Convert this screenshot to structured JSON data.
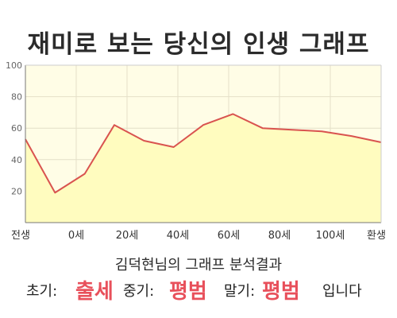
{
  "title": "재미로 보는 당신의 인생 그래프",
  "chart_data": {
    "type": "area",
    "y_ticks": [
      "100",
      "80",
      "60",
      "40",
      "20"
    ],
    "x_tick_labels": [
      "전생",
      "0세",
      "20세",
      "40세",
      "60세",
      "80세",
      "100세",
      "환생"
    ],
    "ylim": [
      0,
      100
    ],
    "grid": true,
    "series": [
      {
        "values": [
          53,
          19,
          31,
          62,
          52,
          48,
          62,
          69,
          60,
          59,
          58,
          55,
          51
        ]
      }
    ],
    "colors": {
      "line": "#d9534f",
      "fill": "#fffcbf",
      "plot_bg": "#fffde6",
      "grid": "#e4e0c8"
    }
  },
  "subtitle": "김덕현님의 그래프 분석결과",
  "results": {
    "early_label": "초기:",
    "early_value": "출세",
    "middle_label": "중기:",
    "middle_value": "평범",
    "late_label": "말기:",
    "late_value": "평범",
    "closing": "입니다"
  }
}
